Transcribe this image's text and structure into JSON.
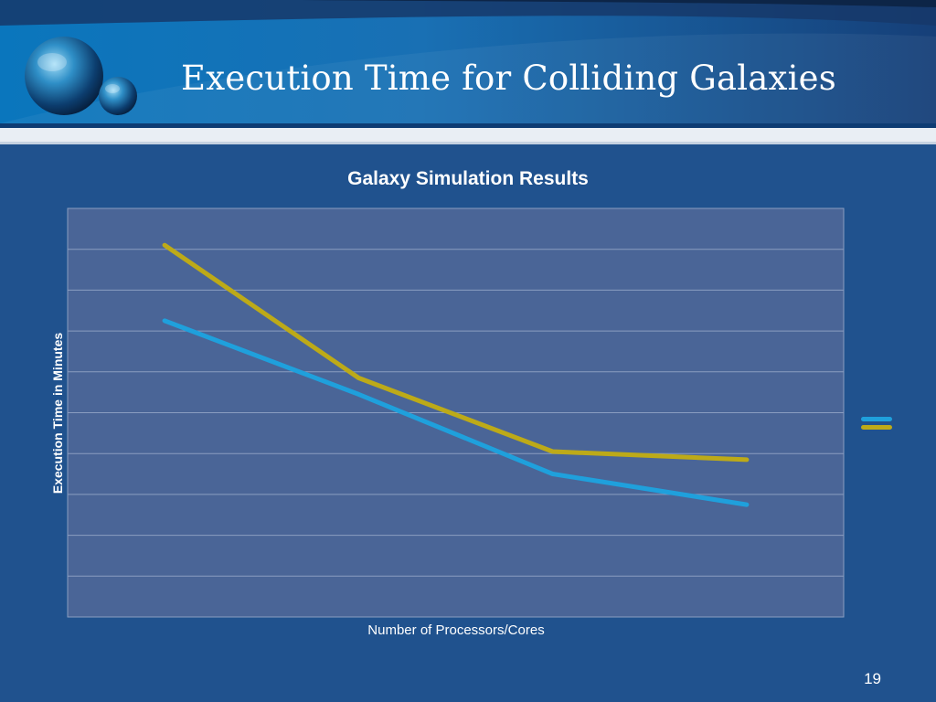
{
  "slide": {
    "title": "Execution Time for Colliding Galaxies",
    "page_number": "19"
  },
  "colors": {
    "background": "#20528e",
    "plot_area": "#4a6597",
    "grid": "#8a9dc0",
    "series_1": "#1fa0dc",
    "series_2": "#bdaa18"
  },
  "chart_data": {
    "type": "line",
    "title": "Galaxy Simulation Results",
    "xlabel": "Number of Processors/Cores",
    "ylabel": "Execution Time in Minutes",
    "categories": [
      "",
      "",
      "",
      ""
    ],
    "ylim": [
      0,
      10
    ],
    "y_gridlines": 10,
    "grid": true,
    "legend": "right",
    "series": [
      {
        "color": "#1fa0dc",
        "values": [
          7.25,
          5.45,
          3.5,
          2.75
        ]
      },
      {
        "color": "#bdaa18",
        "values": [
          9.1,
          5.85,
          4.05,
          3.85
        ]
      }
    ]
  }
}
